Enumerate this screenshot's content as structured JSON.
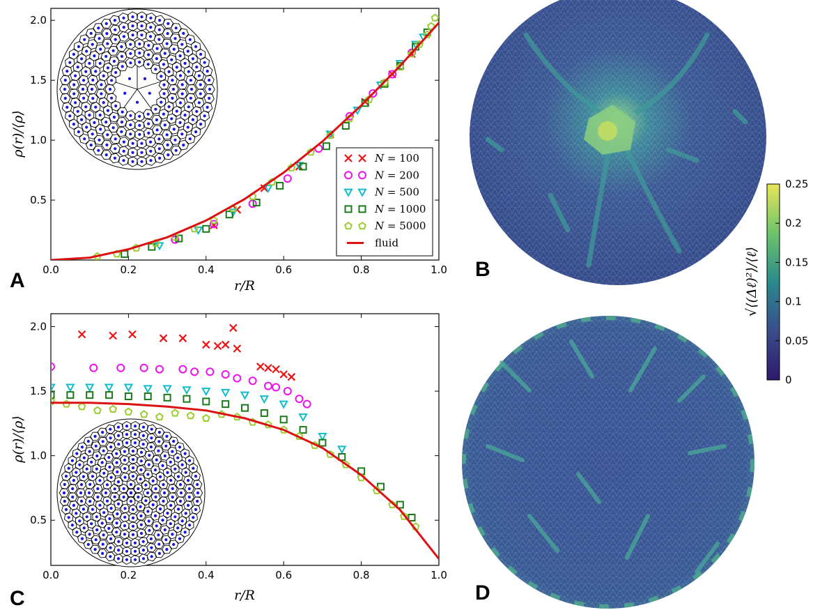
{
  "panels": {
    "a": "A",
    "b": "B",
    "c": "C",
    "d": "D"
  },
  "colors": {
    "N100": "#ee1111",
    "N200": "#ee11ee",
    "N500": "#11bbcc",
    "N1000": "#1a7a1a",
    "N5000": "#9acd32",
    "fluid": "#dd1111",
    "site": "#1515e0"
  },
  "chart_data": [
    {
      "panel": "A",
      "type": "scatter",
      "xlabel": "r/R",
      "ylabel": "ρ(r)/⟨ρ⟩",
      "xlim": [
        0,
        1.0
      ],
      "ylim": [
        0,
        2.1
      ],
      "xticks": [
        "0.0",
        "0.2",
        "0.4",
        "0.6",
        "0.8",
        "1.0"
      ],
      "yticks": [
        "0.5",
        "1.0",
        "1.5",
        "2.0"
      ],
      "legend": {
        "position": "lower-right",
        "entries": [
          {
            "var": "N",
            "text": " = 100",
            "marker": "x",
            "color": "N100"
          },
          {
            "var": "N",
            "text": " = 200",
            "marker": "circle",
            "color": "N200"
          },
          {
            "var": "N",
            "text": " = 500",
            "marker": "triangle-down",
            "color": "N500"
          },
          {
            "var": "N",
            "text": " = 1000",
            "marker": "square",
            "color": "N1000"
          },
          {
            "var": "N",
            "text": " = 5000",
            "marker": "pentagon",
            "color": "N5000"
          },
          {
            "var": "",
            "text": "fluid",
            "marker": "line",
            "color": "fluid"
          }
        ]
      },
      "fluid": {
        "x": [
          0.0,
          0.1,
          0.2,
          0.3,
          0.4,
          0.5,
          0.6,
          0.7,
          0.8,
          0.9,
          1.0
        ],
        "y": [
          0.0,
          0.02,
          0.09,
          0.19,
          0.33,
          0.51,
          0.73,
          0.99,
          1.29,
          1.62,
          1.98
        ]
      },
      "series": [
        {
          "name": "N = 100",
          "marker": "x",
          "color": "N100",
          "x": [
            0.42,
            0.48,
            0.55,
            0.64,
            0.72,
            0.81,
            0.88,
            0.93
          ],
          "y": [
            0.29,
            0.42,
            0.6,
            0.78,
            1.05,
            1.32,
            1.55,
            1.72
          ]
        },
        {
          "name": "N = 200",
          "marker": "circle",
          "color": "N200",
          "x": [
            0.32,
            0.42,
            0.52,
            0.61,
            0.69,
            0.77,
            0.83,
            0.88,
            0.93
          ],
          "y": [
            0.17,
            0.3,
            0.47,
            0.68,
            0.93,
            1.2,
            1.39,
            1.55,
            1.73
          ]
        },
        {
          "name": "N = 500",
          "marker": "triangle-down",
          "color": "N500",
          "x": [
            0.28,
            0.38,
            0.47,
            0.56,
            0.64,
            0.72,
            0.79,
            0.85,
            0.9,
            0.94,
            0.96
          ],
          "y": [
            0.12,
            0.25,
            0.4,
            0.6,
            0.79,
            1.05,
            1.25,
            1.46,
            1.64,
            1.8,
            1.86
          ]
        },
        {
          "name": "N = 1000",
          "marker": "square",
          "color": "N1000",
          "x": [
            0.19,
            0.26,
            0.33,
            0.4,
            0.46,
            0.53,
            0.59,
            0.65,
            0.71,
            0.76,
            0.81,
            0.86,
            0.9,
            0.94,
            0.97
          ],
          "y": [
            0.05,
            0.11,
            0.18,
            0.26,
            0.38,
            0.48,
            0.62,
            0.78,
            0.95,
            1.12,
            1.31,
            1.47,
            1.62,
            1.78,
            1.9
          ]
        },
        {
          "name": "N = 5000",
          "marker": "pentagon",
          "color": "N5000",
          "x": [
            0.12,
            0.17,
            0.22,
            0.27,
            0.32,
            0.37,
            0.42,
            0.47,
            0.52,
            0.57,
            0.62,
            0.67,
            0.72,
            0.77,
            0.82,
            0.86,
            0.9,
            0.93,
            0.95,
            0.97,
            0.98,
            0.99
          ],
          "y": [
            0.03,
            0.05,
            0.1,
            0.14,
            0.19,
            0.26,
            0.33,
            0.43,
            0.53,
            0.65,
            0.77,
            0.9,
            1.04,
            1.18,
            1.34,
            1.48,
            1.61,
            1.72,
            1.8,
            1.88,
            1.95,
            2.02
          ]
        }
      ]
    },
    {
      "panel": "C",
      "type": "scatter",
      "xlabel": "r/R",
      "ylabel": "ρ(r)/⟨ρ⟩",
      "xlim": [
        0,
        1.0
      ],
      "ylim": [
        0.15,
        2.1
      ],
      "xticks": [
        "0.0",
        "0.2",
        "0.4",
        "0.6",
        "0.8",
        "1.0"
      ],
      "yticks": [
        "0.5",
        "1.0",
        "1.5",
        "2.0"
      ],
      "fluid": {
        "x": [
          0.0,
          0.1,
          0.2,
          0.3,
          0.4,
          0.5,
          0.6,
          0.7,
          0.8,
          0.9,
          1.0
        ],
        "y": [
          1.41,
          1.41,
          1.4,
          1.38,
          1.35,
          1.29,
          1.2,
          1.06,
          0.85,
          0.58,
          0.2
        ]
      },
      "series": [
        {
          "name": "N = 100",
          "marker": "x",
          "color": "N100",
          "x": [
            0.08,
            0.16,
            0.21,
            0.29,
            0.34,
            0.4,
            0.43,
            0.45,
            0.47,
            0.48,
            0.54,
            0.56,
            0.58,
            0.6,
            0.62
          ],
          "y": [
            1.94,
            1.93,
            1.94,
            1.91,
            1.91,
            1.86,
            1.85,
            1.86,
            1.99,
            1.83,
            1.69,
            1.68,
            1.67,
            1.63,
            1.61
          ]
        },
        {
          "name": "N = 200",
          "marker": "circle",
          "color": "N200",
          "x": [
            0.0,
            0.11,
            0.18,
            0.24,
            0.28,
            0.34,
            0.37,
            0.41,
            0.45,
            0.48,
            0.52,
            0.56,
            0.58,
            0.61,
            0.64,
            0.66
          ],
          "y": [
            1.69,
            1.68,
            1.68,
            1.68,
            1.67,
            1.67,
            1.65,
            1.65,
            1.63,
            1.6,
            1.58,
            1.54,
            1.53,
            1.5,
            1.44,
            1.4
          ]
        },
        {
          "name": "N = 500",
          "marker": "triangle-down",
          "color": "N500",
          "x": [
            0.0,
            0.05,
            0.1,
            0.15,
            0.2,
            0.25,
            0.3,
            0.35,
            0.4,
            0.45,
            0.5,
            0.55,
            0.6,
            0.65,
            0.7,
            0.75
          ],
          "y": [
            1.53,
            1.53,
            1.53,
            1.53,
            1.53,
            1.52,
            1.52,
            1.51,
            1.5,
            1.49,
            1.47,
            1.44,
            1.4,
            1.3,
            1.15,
            1.05
          ]
        },
        {
          "name": "N = 1000",
          "marker": "square",
          "color": "N1000",
          "x": [
            0.0,
            0.05,
            0.1,
            0.15,
            0.2,
            0.25,
            0.3,
            0.35,
            0.4,
            0.45,
            0.5,
            0.55,
            0.6,
            0.65,
            0.7,
            0.75,
            0.8,
            0.85,
            0.9,
            0.93
          ],
          "y": [
            1.47,
            1.47,
            1.47,
            1.47,
            1.46,
            1.46,
            1.45,
            1.44,
            1.42,
            1.4,
            1.37,
            1.33,
            1.28,
            1.2,
            1.1,
            0.99,
            0.88,
            0.76,
            0.62,
            0.52
          ]
        },
        {
          "name": "N = 5000",
          "marker": "pentagon",
          "color": "N5000",
          "x": [
            0.0,
            0.04,
            0.08,
            0.12,
            0.16,
            0.2,
            0.24,
            0.28,
            0.32,
            0.36,
            0.4,
            0.44,
            0.48,
            0.52,
            0.56,
            0.6,
            0.64,
            0.68,
            0.72,
            0.76,
            0.8,
            0.84,
            0.88,
            0.91,
            0.94
          ],
          "y": [
            1.42,
            1.4,
            1.38,
            1.35,
            1.36,
            1.34,
            1.32,
            1.3,
            1.33,
            1.31,
            1.29,
            1.32,
            1.3,
            1.26,
            1.24,
            1.2,
            1.15,
            1.08,
            1.01,
            0.93,
            0.83,
            0.73,
            0.62,
            0.53,
            0.45
          ]
        }
      ]
    }
  ],
  "colorbar": {
    "label": "√⟨(Δℓ)²⟩/⟨ℓ⟩",
    "ticks": [
      "0",
      "0.05",
      "0.1",
      "0.15",
      "0.2",
      "0.25"
    ],
    "range": [
      0,
      0.25
    ],
    "stops": [
      "#440154",
      "#3b528b",
      "#21918c",
      "#5ec962",
      "#fde725"
    ]
  }
}
